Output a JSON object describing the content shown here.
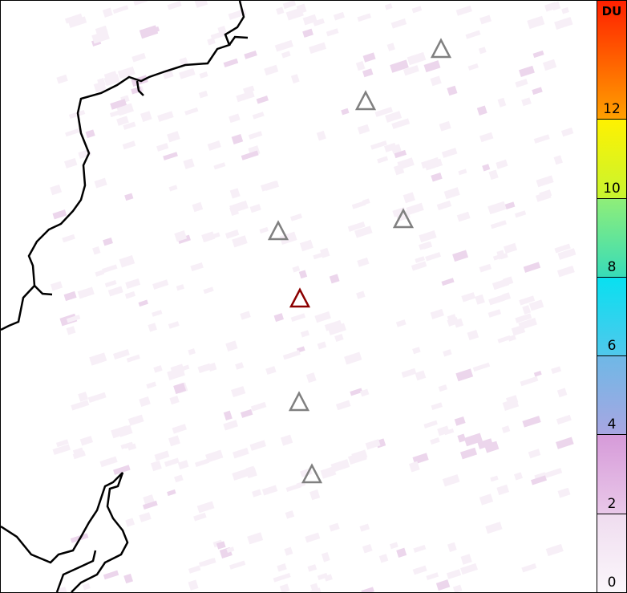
{
  "colorbar": {
    "unit": "DU",
    "min": 0,
    "max": 15,
    "ticks": [
      "0",
      "2",
      "4",
      "6",
      "8",
      "10",
      "12"
    ],
    "bands": [
      {
        "from": 0,
        "to": 2,
        "colors": [
          "#fbf7fb",
          "#efdcef"
        ]
      },
      {
        "from": 2,
        "to": 4,
        "colors": [
          "#e9c8e9",
          "#d69ad9"
        ]
      },
      {
        "from": 4,
        "to": 6,
        "colors": [
          "#a8a6e2",
          "#6eb8e6"
        ]
      },
      {
        "from": 6,
        "to": 8,
        "colors": [
          "#50c8ec",
          "#08e0f0"
        ]
      },
      {
        "from": 8,
        "to": 10,
        "colors": [
          "#38dcb8",
          "#90ee78"
        ]
      },
      {
        "from": 10,
        "to": 12,
        "colors": [
          "#c8f430",
          "#fff200"
        ]
      },
      {
        "from": 12,
        "to": 15,
        "colors": [
          "#ffa000",
          "#ff2000"
        ]
      }
    ]
  },
  "markers": [
    {
      "name": "volcano",
      "color": "#808080"
    },
    {
      "name": "volcano",
      "color": "#808080"
    },
    {
      "name": "volcano",
      "color": "#808080"
    },
    {
      "name": "volcano",
      "color": "#808080"
    },
    {
      "name": "volcano-selected",
      "color": "#8b0000"
    },
    {
      "name": "volcano",
      "color": "#808080"
    },
    {
      "name": "volcano",
      "color": "#808080"
    }
  ]
}
